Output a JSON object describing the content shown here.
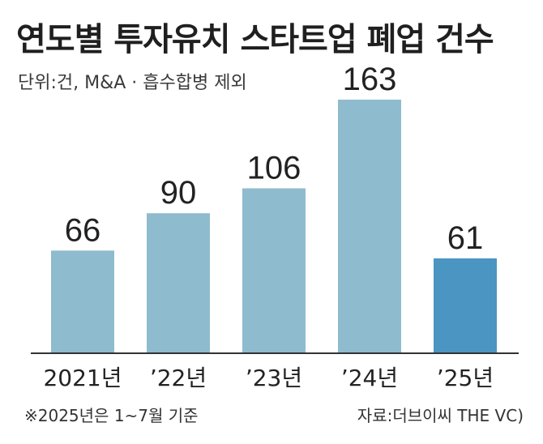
{
  "chart_data": {
    "type": "bar",
    "title": "연도별 투자유치 스타트업 폐업 건수",
    "subtitle": "단위:건, M&A · 흡수합병 제외",
    "categories": [
      "2021년",
      "’22년",
      "’23년",
      "’24년",
      "’25년"
    ],
    "values": [
      66,
      90,
      106,
      163,
      61
    ],
    "value_labels": [
      "66",
      "90",
      "106",
      "163",
      "61"
    ],
    "ylim": [
      0,
      163
    ],
    "grid": false,
    "colors": {
      "bar": "#8fbbcf",
      "highlight_bar": "#4b95c3",
      "baseline": "#333333"
    },
    "highlight_index": 4,
    "note": "※2025년은 1~7월 기준",
    "source": "자료:더브이씨 THE VC)"
  }
}
